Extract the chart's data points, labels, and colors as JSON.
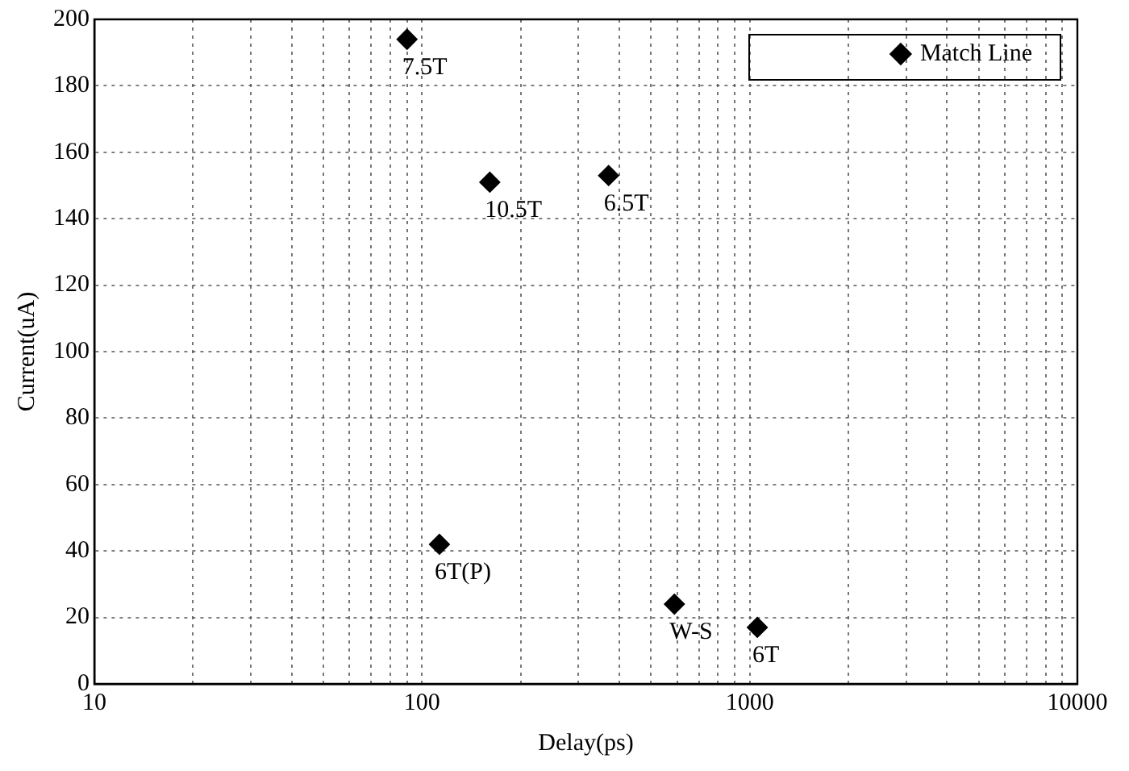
{
  "chart_data": {
    "type": "scatter",
    "xlabel": "Delay(ps)",
    "ylabel": "Current(uA)",
    "x": [
      90,
      161,
      371,
      113,
      589,
      1055
    ],
    "series": [
      {
        "name": "Match Line",
        "color": "#000000",
        "values": [
          194,
          151,
          153,
          42,
          24,
          17
        ]
      }
    ],
    "xlim": [
      10,
      10000
    ],
    "xticks": [
      10,
      100,
      1000,
      10000
    ],
    "ylim": [
      0,
      200
    ],
    "yticks": [
      0,
      20,
      40,
      60,
      80,
      100,
      120,
      140,
      160,
      180,
      200
    ],
    "log": "x",
    "grid": true,
    "legend": "top right",
    "marker": "diamond",
    "annotations": [
      {
        "text": "7.5T",
        "x": 90,
        "y": 194
      },
      {
        "text": "10.5T",
        "x": 161,
        "y": 151
      },
      {
        "text": "6.5T",
        "x": 371,
        "y": 153
      },
      {
        "text": "6T(P)",
        "x": 113,
        "y": 42
      },
      {
        "text": "W-S",
        "x": 589,
        "y": 24
      },
      {
        "text": "6T",
        "x": 1055,
        "y": 17
      }
    ]
  }
}
